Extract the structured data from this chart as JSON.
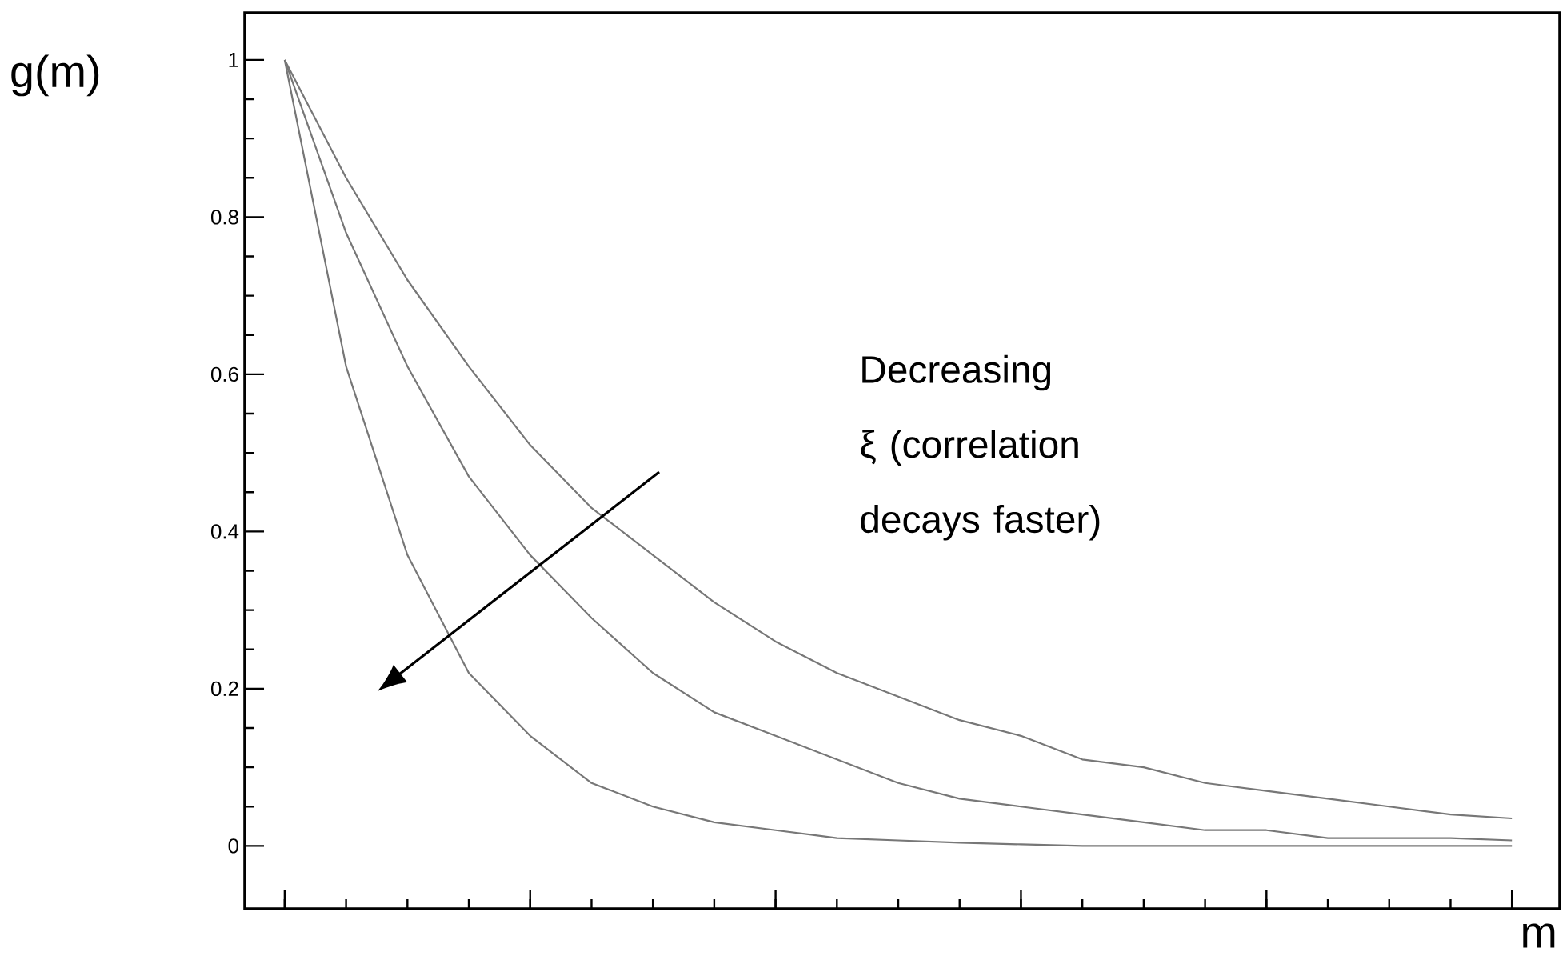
{
  "chart_data": {
    "type": "line",
    "xlabel": "m",
    "ylabel": "g(m)",
    "annotations": [
      "Decreasing ξ (correlation decays faster)"
    ],
    "categories": [
      null,
      null,
      null,
      null,
      null,
      null,
      null,
      null,
      null,
      null,
      null,
      null,
      null,
      null,
      null,
      null,
      null,
      null,
      null,
      null,
      null
    ],
    "ylim": [
      -0.08,
      1.06
    ],
    "yticks": [
      0,
      0.2,
      0.4,
      0.6,
      0.8,
      1
    ],
    "tick_labels": "y",
    "series": [
      {
        "color": "#777777",
        "values": [
          1,
          0.85,
          0.72,
          0.61,
          0.51,
          0.43,
          0.37,
          0.31,
          0.26,
          0.22,
          0.19,
          0.16,
          0.14,
          0.11,
          0.1,
          0.08,
          0.07,
          0.06,
          0.05,
          0.04,
          0.035
        ]
      },
      {
        "color": "#777777",
        "values": [
          1,
          0.78,
          0.61,
          0.47,
          0.37,
          0.29,
          0.22,
          0.17,
          0.14,
          0.11,
          0.08,
          0.06,
          0.05,
          0.04,
          0.03,
          0.02,
          0.02,
          0.01,
          0.01,
          0.01,
          0.007
        ]
      },
      {
        "color": "#777777",
        "values": [
          1,
          0.61,
          0.37,
          0.22,
          0.14,
          0.08,
          0.05,
          0.03,
          0.02,
          0.01,
          0.007,
          0.004,
          0.002,
          0,
          0,
          0,
          0,
          0,
          0,
          0,
          0
        ]
      }
    ]
  }
}
